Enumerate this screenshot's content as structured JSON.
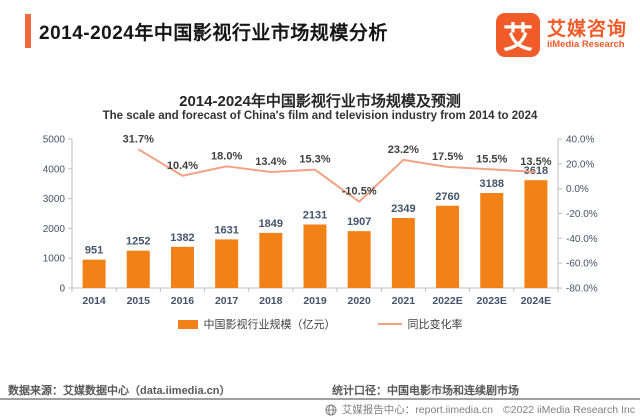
{
  "header": {
    "title": "2014-2024年中国影视行业市场规模分析"
  },
  "logo": {
    "mark": "艾",
    "name": "艾媒咨询",
    "subtitle": "iiMedia Research"
  },
  "chart": {
    "title": "2014-2024年中国影视行业市场规模及预测",
    "subtitle": "The scale and forecast of China's film and television industry from 2014 to 2024"
  },
  "chart_data": {
    "type": "bar",
    "categories": [
      "2014",
      "2015",
      "2016",
      "2017",
      "2018",
      "2019",
      "2020",
      "2021",
      "2022E",
      "2023E",
      "2024E"
    ],
    "series": [
      {
        "name": "中国影视行业规模（亿元）",
        "type": "bar",
        "axis": "left",
        "color": "#F28117",
        "values": [
          951,
          1252,
          1382,
          1631,
          1849,
          2131,
          1907,
          2349,
          2760,
          3188,
          3618
        ]
      },
      {
        "name": "同比变化率",
        "type": "line",
        "axis": "right",
        "color": "#F2A283",
        "values": [
          null,
          31.7,
          10.4,
          18.0,
          13.4,
          15.3,
          -10.5,
          23.2,
          17.5,
          15.5,
          13.5
        ]
      }
    ],
    "left_axis": {
      "min": 0,
      "max": 5000,
      "step": 1000
    },
    "right_axis": {
      "min": -80,
      "max": 40,
      "step": 20,
      "suffix": "%"
    },
    "axis_color": "#BFBFBF",
    "label_color": "#44546A",
    "legend_position": "bottom",
    "grid": false
  },
  "footer": {
    "source": "数据来源：艾媒数据中心（data.iimedia.cn）",
    "statistics": "统计口径：中国电影市场和连续剧市场",
    "report_center": "艾媒报告中心：report.iimedia.cn",
    "copyright": "©2022  iiMedia Research Inc"
  }
}
